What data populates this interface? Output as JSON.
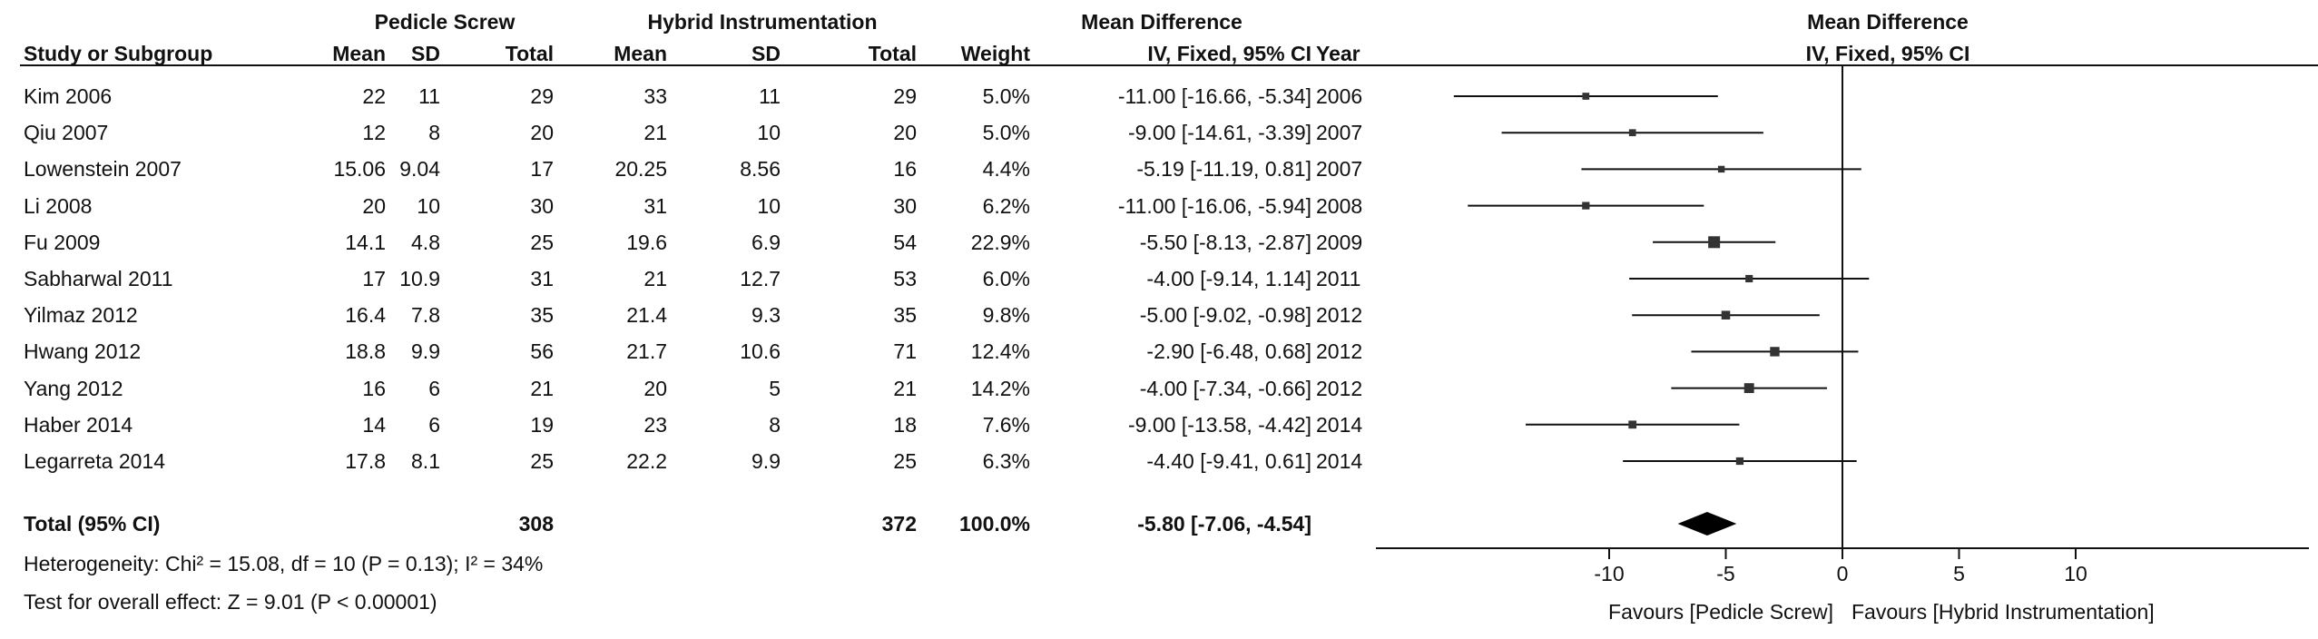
{
  "header": {
    "group1": "Pedicle Screw",
    "group2": "Hybrid Instrumentation",
    "effect_title": "Mean Difference",
    "plot_title": "Mean Difference",
    "cols": {
      "study": "Study or Subgroup",
      "mean1": "Mean",
      "sd1": "SD",
      "total1": "Total",
      "mean2": "Mean",
      "sd2": "SD",
      "total2": "Total",
      "weight": "Weight",
      "ci": "IV, Fixed, 95% CI",
      "year": "Year",
      "plot_ci": "IV, Fixed, 95% CI"
    }
  },
  "rows": [
    {
      "study": "Kim 2006",
      "mean1": "22",
      "sd1": "11",
      "total1": "29",
      "mean2": "33",
      "sd2": "11",
      "total2": "29",
      "weight": "5.0%",
      "ci": "-11.00 [-16.66, -5.34]",
      "year": "2006"
    },
    {
      "study": "Qiu 2007",
      "mean1": "12",
      "sd1": "8",
      "total1": "20",
      "mean2": "21",
      "sd2": "10",
      "total2": "20",
      "weight": "5.0%",
      "ci": "-9.00 [-14.61, -3.39]",
      "year": "2007"
    },
    {
      "study": "Lowenstein 2007",
      "mean1": "15.06",
      "sd1": "9.04",
      "total1": "17",
      "mean2": "20.25",
      "sd2": "8.56",
      "total2": "16",
      "weight": "4.4%",
      "ci": "-5.19 [-11.19, 0.81]",
      "year": "2007"
    },
    {
      "study": "Li 2008",
      "mean1": "20",
      "sd1": "10",
      "total1": "30",
      "mean2": "31",
      "sd2": "10",
      "total2": "30",
      "weight": "6.2%",
      "ci": "-11.00 [-16.06, -5.94]",
      "year": "2008"
    },
    {
      "study": "Fu 2009",
      "mean1": "14.1",
      "sd1": "4.8",
      "total1": "25",
      "mean2": "19.6",
      "sd2": "6.9",
      "total2": "54",
      "weight": "22.9%",
      "ci": "-5.50 [-8.13, -2.87]",
      "year": "2009"
    },
    {
      "study": "Sabharwal 2011",
      "mean1": "17",
      "sd1": "10.9",
      "total1": "31",
      "mean2": "21",
      "sd2": "12.7",
      "total2": "53",
      "weight": "6.0%",
      "ci": "-4.00 [-9.14, 1.14]",
      "year": "2011"
    },
    {
      "study": "Yilmaz 2012",
      "mean1": "16.4",
      "sd1": "7.8",
      "total1": "35",
      "mean2": "21.4",
      "sd2": "9.3",
      "total2": "35",
      "weight": "9.8%",
      "ci": "-5.00 [-9.02, -0.98]",
      "year": "2012"
    },
    {
      "study": "Hwang 2012",
      "mean1": "18.8",
      "sd1": "9.9",
      "total1": "56",
      "mean2": "21.7",
      "sd2": "10.6",
      "total2": "71",
      "weight": "12.4%",
      "ci": "-2.90 [-6.48, 0.68]",
      "year": "2012"
    },
    {
      "study": "Yang 2012",
      "mean1": "16",
      "sd1": "6",
      "total1": "21",
      "mean2": "20",
      "sd2": "5",
      "total2": "21",
      "weight": "14.2%",
      "ci": "-4.00 [-7.34, -0.66]",
      "year": "2012"
    },
    {
      "study": "Haber 2014",
      "mean1": "14",
      "sd1": "6",
      "total1": "19",
      "mean2": "23",
      "sd2": "8",
      "total2": "18",
      "weight": "7.6%",
      "ci": "-9.00 [-13.58, -4.42]",
      "year": "2014"
    },
    {
      "study": "Legarreta 2014",
      "mean1": "17.8",
      "sd1": "8.1",
      "total1": "25",
      "mean2": "22.2",
      "sd2": "9.9",
      "total2": "25",
      "weight": "6.3%",
      "ci": "-4.40 [-9.41, 0.61]",
      "year": "2014"
    }
  ],
  "total": {
    "label": "Total (95% CI)",
    "total1": "308",
    "total2": "372",
    "weight": "100.0%",
    "ci": "-5.80 [-7.06, -4.54]"
  },
  "footer": {
    "heterogeneity": "Heterogeneity: Chi² = 15.08, df = 10 (P = 0.13); I² = 34%",
    "overall": "Test for overall effect: Z = 9.01 (P < 0.00001)"
  },
  "axis": {
    "favours_left": "Favours [Pedicle Screw]",
    "favours_right": "Favours [Hybrid Instrumentation]"
  },
  "chart_data": {
    "type": "forest",
    "xlim": [
      -20,
      20
    ],
    "ticks": [
      -10,
      -5,
      0,
      5,
      10
    ],
    "tick_labels": [
      "-10",
      "-5",
      "0",
      "5",
      "10"
    ],
    "studies": [
      {
        "name": "Kim 2006",
        "md": -11.0,
        "lo": -16.66,
        "hi": -5.34,
        "weight": 5.0
      },
      {
        "name": "Qiu 2007",
        "md": -9.0,
        "lo": -14.61,
        "hi": -3.39,
        "weight": 5.0
      },
      {
        "name": "Lowenstein 2007",
        "md": -5.19,
        "lo": -11.19,
        "hi": 0.81,
        "weight": 4.4
      },
      {
        "name": "Li 2008",
        "md": -11.0,
        "lo": -16.06,
        "hi": -5.94,
        "weight": 6.2
      },
      {
        "name": "Fu 2009",
        "md": -5.5,
        "lo": -8.13,
        "hi": -2.87,
        "weight": 22.9
      },
      {
        "name": "Sabharwal 2011",
        "md": -4.0,
        "lo": -9.14,
        "hi": 1.14,
        "weight": 6.0
      },
      {
        "name": "Yilmaz 2012",
        "md": -5.0,
        "lo": -9.02,
        "hi": -0.98,
        "weight": 9.8
      },
      {
        "name": "Hwang 2012",
        "md": -2.9,
        "lo": -6.48,
        "hi": 0.68,
        "weight": 12.4
      },
      {
        "name": "Yang 2012",
        "md": -4.0,
        "lo": -7.34,
        "hi": -0.66,
        "weight": 14.2
      },
      {
        "name": "Haber 2014",
        "md": -9.0,
        "lo": -13.58,
        "hi": -4.42,
        "weight": 7.6
      },
      {
        "name": "Legarreta 2014",
        "md": -4.4,
        "lo": -9.41,
        "hi": 0.61,
        "weight": 6.3
      }
    ],
    "pooled": {
      "md": -5.8,
      "lo": -7.06,
      "hi": -4.54
    }
  }
}
